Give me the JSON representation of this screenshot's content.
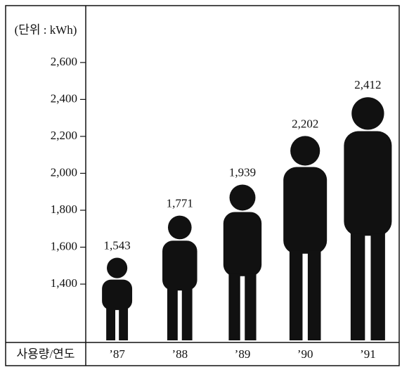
{
  "chart_data": {
    "type": "pictogram",
    "y_axis_label": "(단위 : kWh)",
    "x_axis_label": "사용량/연도",
    "categories": [
      "’87",
      "’88",
      "’89",
      "’90",
      "’91"
    ],
    "values": [
      1543,
      1771,
      1939,
      2202,
      2412
    ],
    "value_labels": [
      "1,543",
      "1,771",
      "1,939",
      "2,202",
      "2,412"
    ],
    "color": "#111111",
    "ylim": [
      1084,
      2908
    ],
    "yticks": [
      {
        "value": 1400,
        "label": "1,400"
      },
      {
        "value": 1600,
        "label": "1,600"
      },
      {
        "value": 1800,
        "label": "1,800"
      },
      {
        "value": 2000,
        "label": "2,000"
      },
      {
        "value": 2200,
        "label": "2,200"
      },
      {
        "value": 2400,
        "label": "2,400"
      },
      {
        "value": 2600,
        "label": "2,600"
      }
    ]
  }
}
